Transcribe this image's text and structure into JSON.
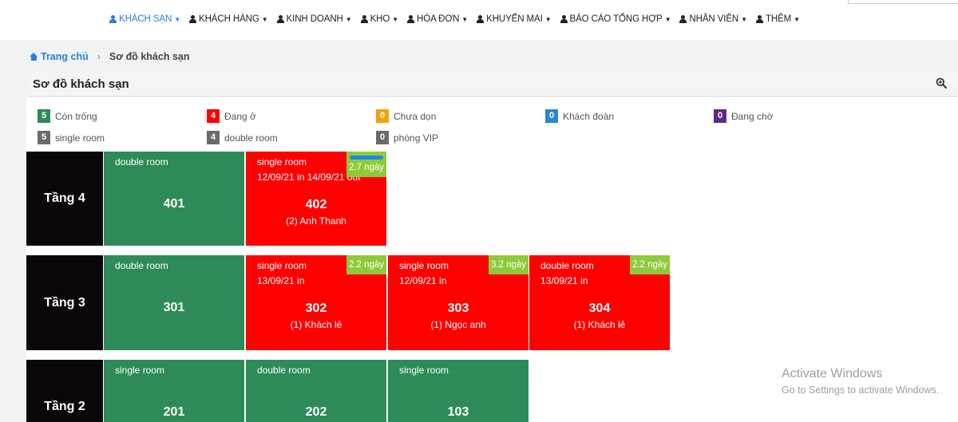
{
  "nav": {
    "items": [
      {
        "label": "KHÁCH SẠN",
        "active": true
      },
      {
        "label": "KHÁCH HÀNG",
        "active": false
      },
      {
        "label": "KINH DOANH",
        "active": false
      },
      {
        "label": "KHO",
        "active": false
      },
      {
        "label": "HÓA ĐƠN",
        "active": false
      },
      {
        "label": "KHUYẾN MẠI",
        "active": false
      },
      {
        "label": "BÁO CÁO TỔNG HỢP",
        "active": false
      },
      {
        "label": "NHÂN VIÊN",
        "active": false
      },
      {
        "label": "THÊM",
        "active": false
      }
    ],
    "accent": "#2d7fd3"
  },
  "breadcrumb": {
    "home": "Trang chủ",
    "separator": "›",
    "current": "Sơ đồ khách sạn"
  },
  "panel": {
    "title": "Sơ đồ khách sạn",
    "zoom_icon": "zoom-in-icon"
  },
  "legend": [
    {
      "count": "5",
      "label": "Còn trống",
      "color": "#2e8b57"
    },
    {
      "count": "4",
      "label": "Đang ở",
      "color": "#ff0000"
    },
    {
      "count": "0",
      "label": "Chưa dọn",
      "color": "#f0a30a"
    },
    {
      "count": "0",
      "label": "Khách đoàn",
      "color": "#2d86c9"
    },
    {
      "count": "0",
      "label": "Đang chờ",
      "color": "#5b2c86"
    },
    {
      "count": "5",
      "label": "single room",
      "color": "#6b6b6b"
    },
    {
      "count": "4",
      "label": "double room",
      "color": "#6b6b6b"
    },
    {
      "count": "0",
      "label": "phòng VIP",
      "color": "#6b6b6b"
    }
  ],
  "floors": [
    {
      "label": "Tầng 4",
      "rooms": [
        {
          "type": "double room",
          "number": "401",
          "status": "green",
          "date": "",
          "guest": "",
          "stay": ""
        },
        {
          "type": "single room",
          "number": "402",
          "status": "red",
          "date": "12/09/21 in 14/09/21 out",
          "guest": "(2) Anh Thanh",
          "stay": "2.7 ngày"
        }
      ]
    },
    {
      "label": "Tầng 3",
      "rooms": [
        {
          "type": "double room",
          "number": "301",
          "status": "green",
          "date": "",
          "guest": "",
          "stay": ""
        },
        {
          "type": "single room",
          "number": "302",
          "status": "red",
          "date": "13/09/21 in",
          "guest": "(1) Khách lẻ",
          "stay": "2.2 ngày"
        },
        {
          "type": "single room",
          "number": "303",
          "status": "red",
          "date": "12/09/21 in",
          "guest": "(1) Ngọc anh",
          "stay": "3.2 ngày"
        },
        {
          "type": "double room",
          "number": "304",
          "status": "red",
          "date": "13/09/21 in",
          "guest": "(1) Khách lẻ",
          "stay": "2.2 ngày"
        }
      ]
    },
    {
      "label": "Tầng 2",
      "rooms": [
        {
          "type": "single room",
          "number": "201",
          "status": "green",
          "date": "",
          "guest": "",
          "stay": ""
        },
        {
          "type": "double room",
          "number": "202",
          "status": "green",
          "date": "",
          "guest": "",
          "stay": ""
        },
        {
          "type": "single room",
          "number": "103",
          "status": "green",
          "date": "",
          "guest": "",
          "stay": ""
        }
      ]
    }
  ],
  "watermark": {
    "line1": "Activate Windows",
    "line2": "Go to Settings to activate Windows."
  }
}
